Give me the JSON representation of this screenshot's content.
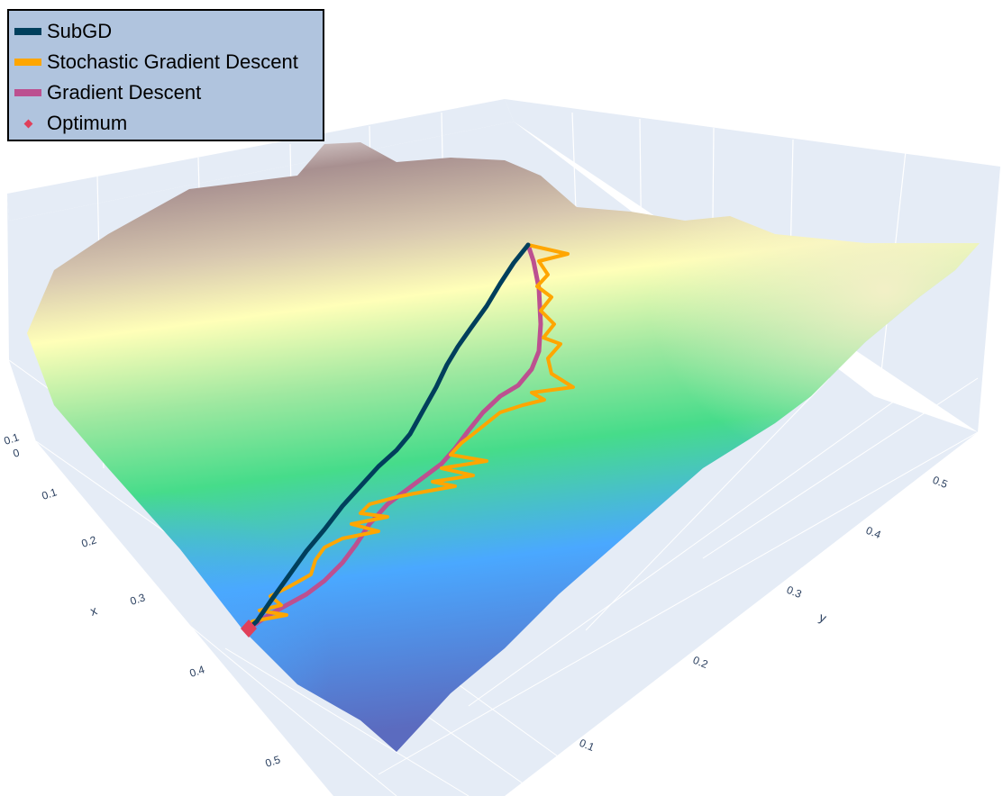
{
  "chart_data": {
    "type": "surface3d",
    "title": "",
    "axes": {
      "x": {
        "title": "x",
        "ticks": [
          "0",
          "0.1",
          "0.2",
          "0.3",
          "0.4",
          "0.5"
        ]
      },
      "y": {
        "title": "y",
        "ticks": [
          "0.1",
          "0.2",
          "0.3",
          "0.4",
          "0.5"
        ]
      },
      "x_extra_tick": "0.1",
      "range": [
        0,
        0.55
      ]
    },
    "surface_colorscale": [
      "#5b6bbf",
      "#4aa8ff",
      "#46dc8a",
      "#ffffb8",
      "#f0e0b0",
      "#a89090",
      "#ffffff"
    ],
    "legend": {
      "placement": "top-left",
      "items": [
        {
          "name": "SubGD",
          "color": "#003f5c",
          "kind": "line"
        },
        {
          "name": "Stochastic Gradient Descent",
          "color": "#ffa600",
          "kind": "line"
        },
        {
          "name": "Gradient Descent",
          "color": "#bc5090",
          "kind": "line"
        },
        {
          "name": "Optimum",
          "color": "#e0405a",
          "kind": "marker"
        }
      ]
    },
    "series": [
      {
        "name": "SubGD",
        "color": "#003f5c"
      },
      {
        "name": "Stochastic Gradient Descent",
        "color": "#ffa600"
      },
      {
        "name": "Gradient Descent",
        "color": "#bc5090"
      },
      {
        "name": "Optimum",
        "color": "#e0405a"
      }
    ],
    "grid": true
  }
}
